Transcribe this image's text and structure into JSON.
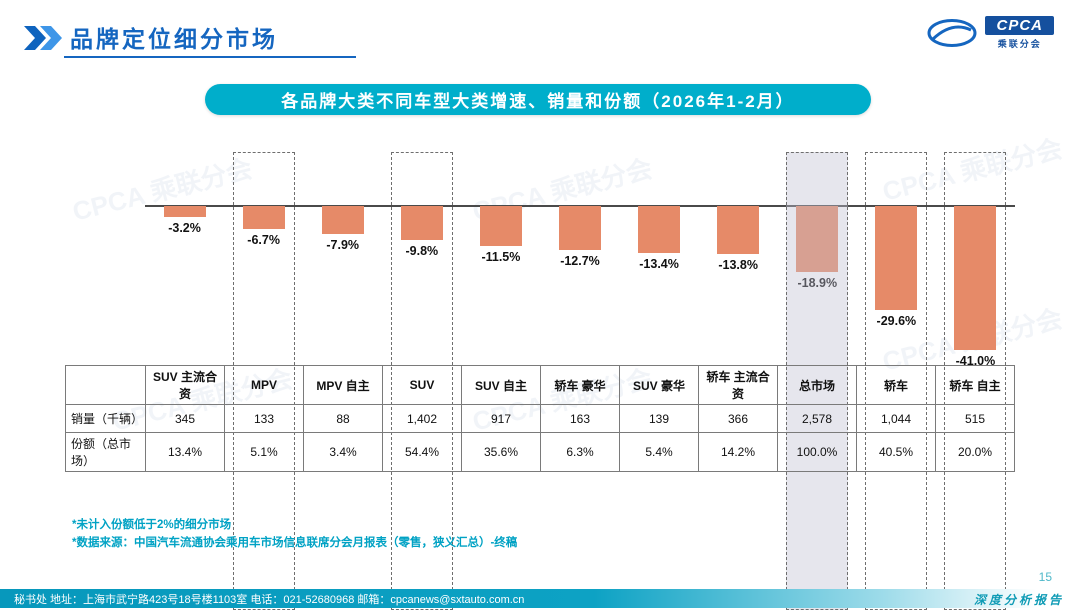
{
  "header": {
    "title": "品牌定位细分市场",
    "logo": {
      "text": "CPCA",
      "subtext": "乘联分会"
    }
  },
  "watermark": "CPCA 乘联分会",
  "chart_title": "各品牌大类不同车型大类增速、销量和份额（2026年1-2月）",
  "chart_data": {
    "type": "bar",
    "title": "各品牌大类不同车型大类增速、销量和份额（2026年1-2月）",
    "categories": [
      "SUV 主流合资",
      "MPV",
      "MPV 自主",
      "SUV",
      "SUV 自主",
      "轿车 豪华",
      "SUV 豪华",
      "轿车 主流合资",
      "总市场",
      "轿车",
      "轿车 自主"
    ],
    "series": [
      {
        "name": "增速(%)",
        "values": [
          -3.2,
          -6.7,
          -7.9,
          -9.8,
          -11.5,
          -12.7,
          -13.4,
          -13.8,
          -18.9,
          -29.6,
          -41.0
        ]
      },
      {
        "name": "销量（千辆）",
        "values": [
          345,
          133,
          88,
          1402,
          917,
          163,
          139,
          366,
          2578,
          1044,
          515
        ]
      },
      {
        "name": "份额（总市场）",
        "values": [
          13.4,
          5.1,
          3.4,
          54.4,
          35.6,
          6.3,
          5.4,
          14.2,
          100.0,
          40.5,
          20.0
        ]
      }
    ],
    "bar_color": "#E68A68",
    "highlight_fill": "#C1C1D2",
    "dashed_box_indexes": [
      1,
      3,
      8,
      9,
      10
    ],
    "highlight_index": 8,
    "ylim": [
      -45,
      0
    ],
    "grid": false,
    "legend": false
  },
  "table": {
    "corner": "",
    "headers": [
      "SUV 主流合资",
      "MPV",
      "MPV 自主",
      "SUV",
      "SUV 自主",
      "轿车 豪华",
      "SUV 豪华",
      "轿车 主流合资",
      "总市场",
      "轿车",
      "轿车 自主"
    ],
    "rows": [
      {
        "label": "销量（千辆）",
        "cells": [
          "345",
          "133",
          "88",
          "1,402",
          "917",
          "163",
          "139",
          "366",
          "2,578",
          "1,044",
          "515"
        ]
      },
      {
        "label": "份额（总市场）",
        "cells": [
          "13.4%",
          "5.1%",
          "3.4%",
          "54.4%",
          "35.6%",
          "6.3%",
          "5.4%",
          "14.2%",
          "100.0%",
          "40.5%",
          "20.0%"
        ]
      }
    ]
  },
  "notes": [
    "*未计入份额低于2%的细分市场",
    "*数据来源：中国汽车流通协会乘用车市场信息联席分会月报表（零售，狭义汇总）-终稿"
  ],
  "footer": {
    "contact": "秘书处  地址：上海市武宁路423号18号楼1103室 电话：021-52680968  邮箱：cpcanews@sxtauto.com.cn",
    "page": "15",
    "report_label": "深度分析报告"
  }
}
